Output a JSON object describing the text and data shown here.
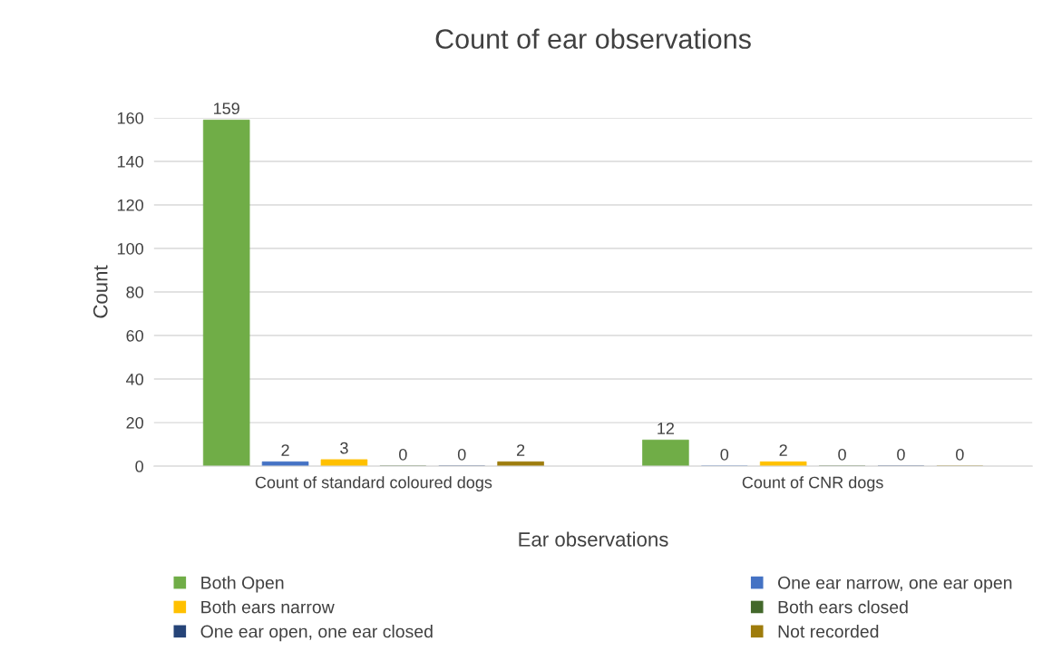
{
  "chart_data": {
    "type": "bar",
    "title": "Count of ear observations",
    "xlabel": "Ear observations",
    "ylabel": "Count",
    "categories": [
      "Count of standard coloured dogs",
      "Count of CNR dogs"
    ],
    "series": [
      {
        "name": "Both Open",
        "color": "#70ad47",
        "values": [
          159,
          12
        ]
      },
      {
        "name": "One ear narrow, one ear open",
        "color": "#4472c4",
        "values": [
          2,
          0
        ]
      },
      {
        "name": "Both ears narrow",
        "color": "#ffc000",
        "values": [
          3,
          2
        ]
      },
      {
        "name": "Both ears closed",
        "color": "#43682b",
        "values": [
          0,
          0
        ]
      },
      {
        "name": "One ear open, one ear closed",
        "color": "#264478",
        "values": [
          0,
          0
        ]
      },
      {
        "name": "Not recorded",
        "color": "#9e7c0c",
        "values": [
          2,
          0
        ]
      }
    ],
    "ylim": [
      0,
      160
    ],
    "yticks": [
      0,
      20,
      40,
      60,
      80,
      100,
      120,
      140,
      160
    ],
    "grid": "y",
    "legend": "bottom",
    "data_labels": true
  }
}
